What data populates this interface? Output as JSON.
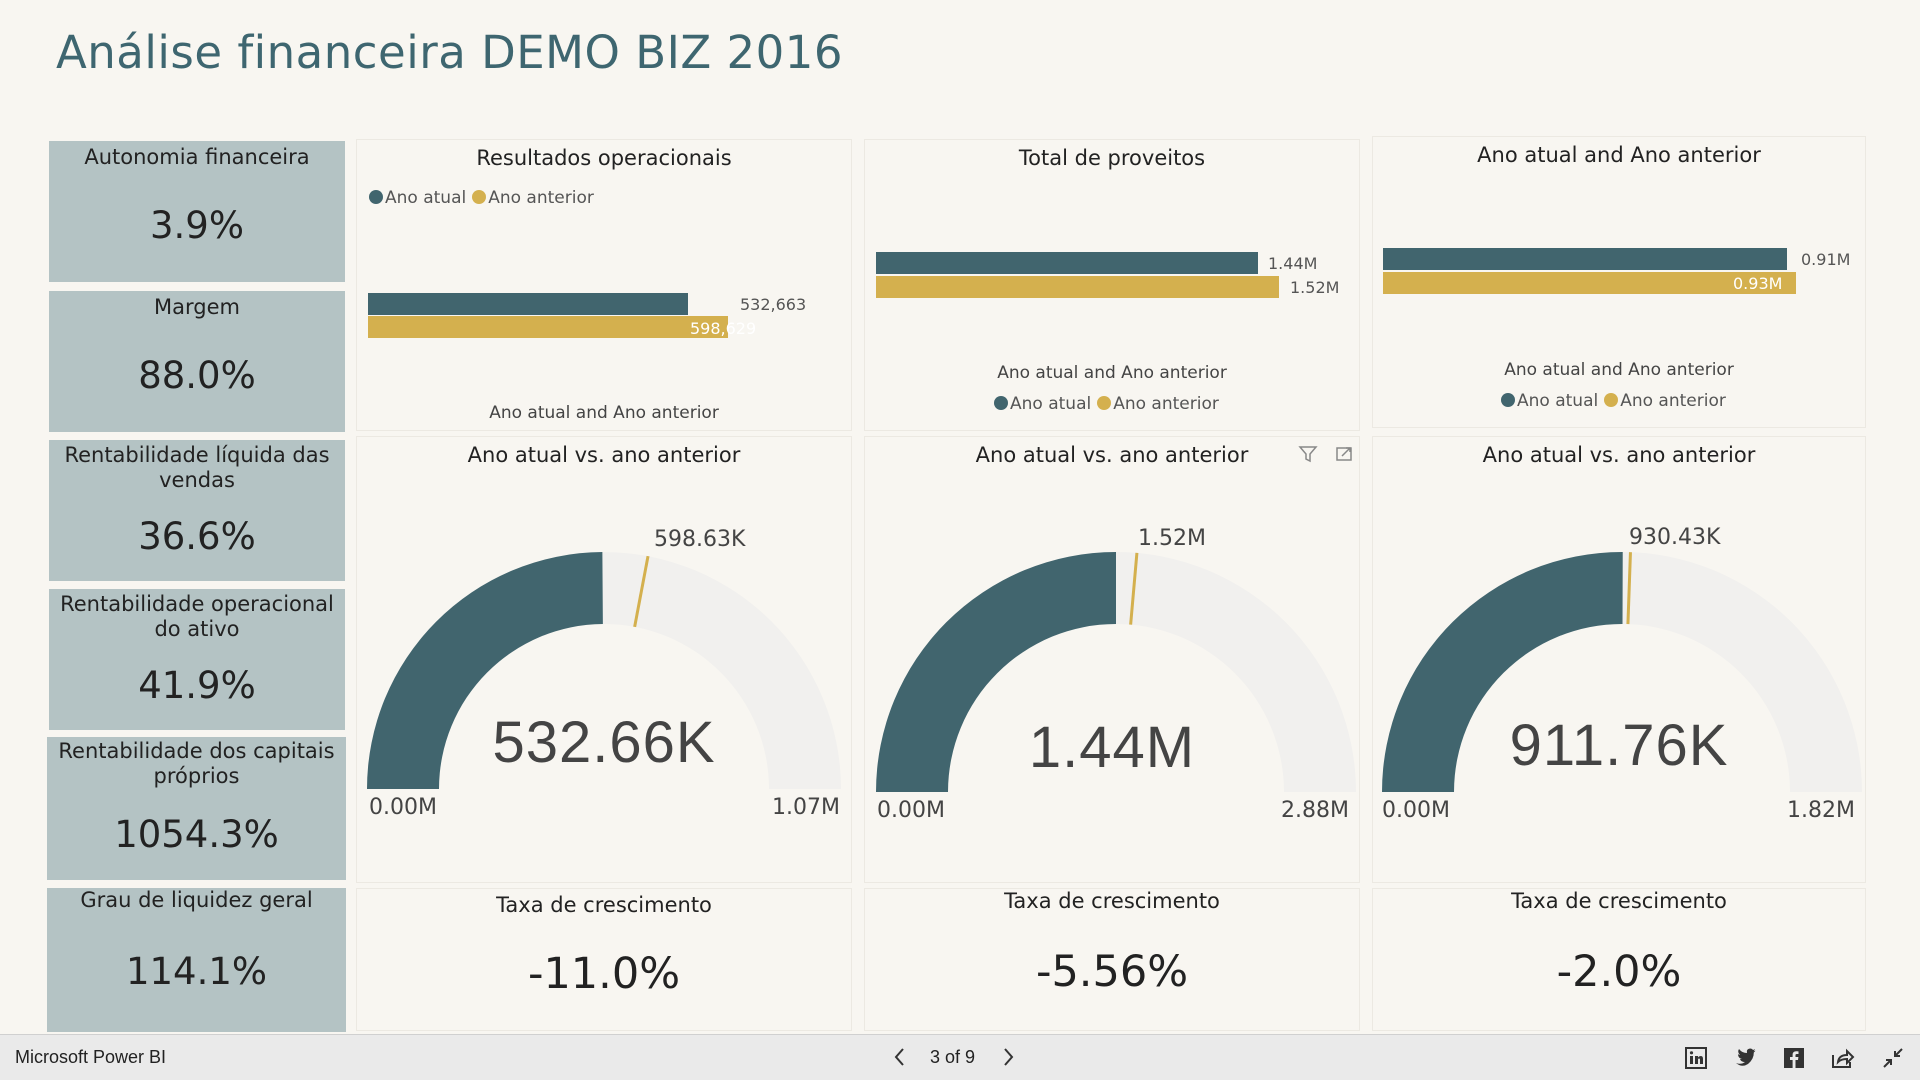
{
  "page": {
    "title": "Análise financeira DEMO BIZ 2016"
  },
  "kpis": [
    {
      "label": "Autonomia financeira",
      "value": "3.9%"
    },
    {
      "label": "Margem",
      "value": "88.0%"
    },
    {
      "label": "Rentabilidade líquida das vendas",
      "value": "36.6%"
    },
    {
      "label": "Rentabilidade operacional do ativo",
      "value": "41.9%"
    },
    {
      "label": "Rentabilidade dos capitais próprios",
      "value": "1054.3%"
    },
    {
      "label": "Grau de liquidez geral",
      "value": "114.1%"
    }
  ],
  "colors": {
    "atual": "#41656E",
    "anterior": "#D4B04E",
    "gauge_bg": "#F1F0EE",
    "kpi_bg": "#B4C3C4",
    "title": "#3E6670"
  },
  "legend": {
    "atual": "Ano atual",
    "anterior": "Ano anterior"
  },
  "bar_panels": [
    {
      "title": "Resultados operacionais",
      "axis_title": "Ano atual and Ano anterior",
      "atual_label": "532,663",
      "anterior_label": "598,629"
    },
    {
      "title": "Total de proveitos",
      "axis_title": "Ano atual and Ano anterior",
      "atual_label": "1.44M",
      "anterior_label": "1.52M"
    },
    {
      "title": "Ano atual and Ano anterior",
      "axis_title": "Ano atual and Ano anterior",
      "atual_label": "0.91M",
      "anterior_label": "0.93M"
    }
  ],
  "gauges": [
    {
      "title": "Ano atual vs. ano anterior",
      "center": "532.66K",
      "min_label": "0.00M",
      "max_label": "1.07M",
      "target_label": "598.63K"
    },
    {
      "title": "Ano atual vs. ano anterior",
      "center": "1.44M",
      "min_label": "0.00M",
      "max_label": "2.88M",
      "target_label": "1.52M"
    },
    {
      "title": "Ano atual vs. ano anterior",
      "center": "911.76K",
      "min_label": "0.00M",
      "max_label": "1.82M",
      "target_label": "930.43K"
    }
  ],
  "growth": [
    {
      "title": "Taxa de crescimento",
      "value": "-11.0%"
    },
    {
      "title": "Taxa de crescimento",
      "value": "-5.56%"
    },
    {
      "title": "Taxa de crescimento",
      "value": "-2.0%"
    }
  ],
  "chart_data": [
    {
      "type": "bar",
      "title": "Resultados operacionais",
      "orientation": "horizontal",
      "categories": [
        "Ano atual and Ano anterior"
      ],
      "series": [
        {
          "name": "Ano atual",
          "values": [
            532663
          ]
        },
        {
          "name": "Ano anterior",
          "values": [
            598629
          ]
        }
      ],
      "legend": "top-left"
    },
    {
      "type": "bar",
      "title": "Total de proveitos",
      "orientation": "horizontal",
      "categories": [
        "Ano atual and Ano anterior"
      ],
      "series": [
        {
          "name": "Ano atual",
          "values": [
            1440000
          ]
        },
        {
          "name": "Ano anterior",
          "values": [
            1520000
          ]
        }
      ],
      "legend": "bottom"
    },
    {
      "type": "bar",
      "title": "Ano atual and Ano anterior",
      "orientation": "horizontal",
      "categories": [
        "Ano atual and Ano anterior"
      ],
      "series": [
        {
          "name": "Ano atual",
          "values": [
            910000
          ]
        },
        {
          "name": "Ano anterior",
          "values": [
            930000
          ]
        }
      ],
      "legend": "bottom"
    },
    {
      "type": "gauge",
      "title": "Ano atual vs. ano anterior",
      "min": 0,
      "max": 1070000,
      "value": 532660,
      "target": 598630
    },
    {
      "type": "gauge",
      "title": "Ano atual vs. ano anterior",
      "min": 0,
      "max": 2880000,
      "value": 1440000,
      "target": 1520000
    },
    {
      "type": "gauge",
      "title": "Ano atual vs. ano anterior",
      "min": 0,
      "max": 1820000,
      "value": 911760,
      "target": 930430
    }
  ],
  "footer": {
    "brand": "Microsoft Power BI",
    "pager": "3 of 9",
    "share_icons": [
      "linkedin-icon",
      "twitter-icon",
      "facebook-icon",
      "share-icon",
      "exit-fullscreen-icon"
    ]
  }
}
